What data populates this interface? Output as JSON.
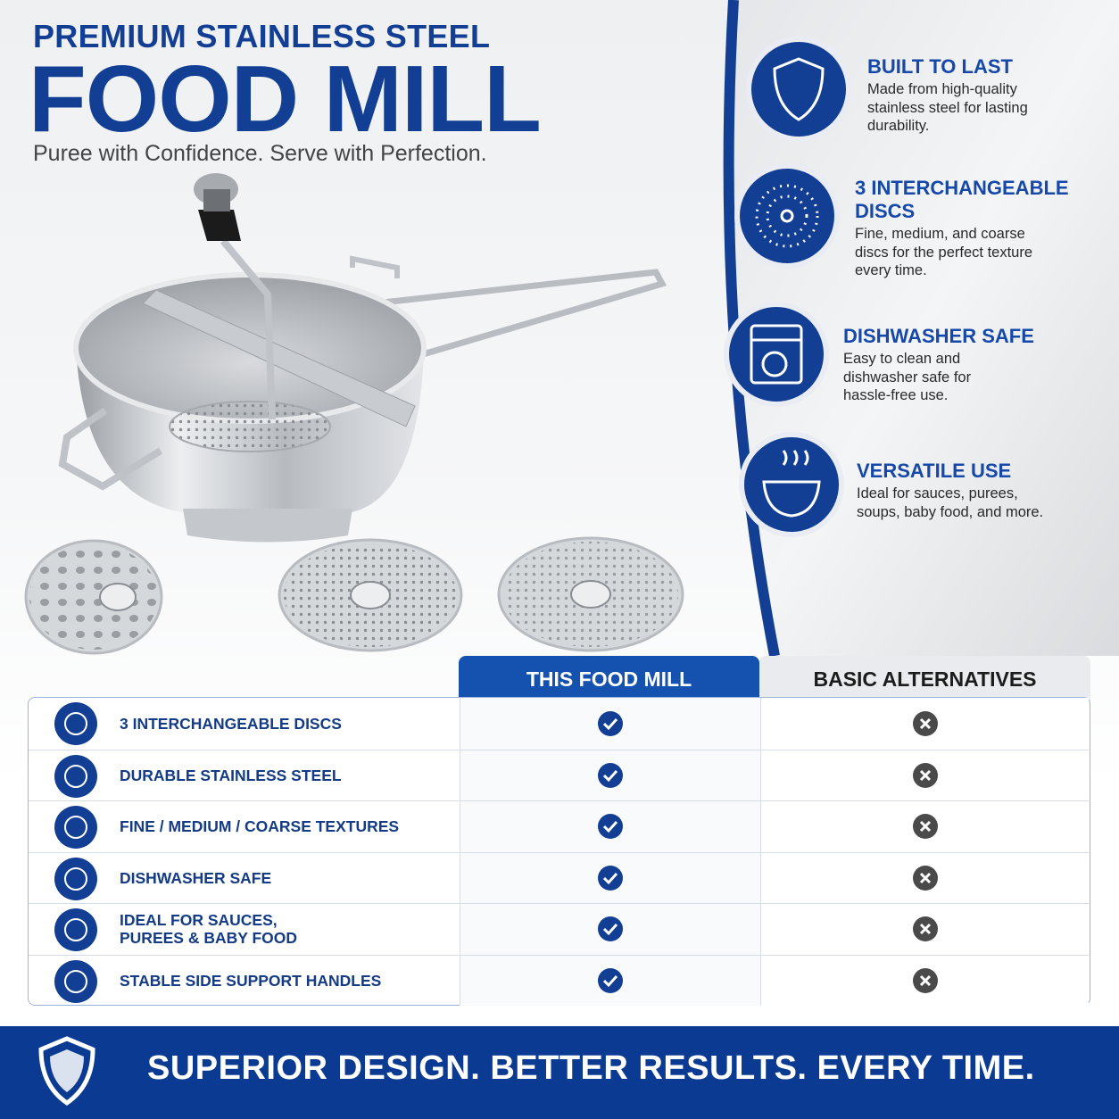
{
  "header": {
    "eyebrow": "PREMIUM STAINLESS STEEL",
    "title": "FOOD MILL",
    "tagline": "Puree with Confidence. Serve with Perfection."
  },
  "features": [
    {
      "title": "BUILT TO LAST",
      "text": "Made from high-quality stainless steel for lasting durability."
    },
    {
      "title": "3 INTERCHANGEABLE DISCS",
      "text": "Fine, medium, and coarse discs for the perfect texture every time."
    },
    {
      "title": "DISHWASHER SAFE",
      "text": "Easy to clean and dishwasher safe for hassle-free use."
    },
    {
      "title": "VERSATILE USE",
      "text": "Ideal for sauces, purees, soups, baby food, and more."
    }
  ],
  "table": {
    "columns": [
      "THIS FOOD MILL",
      "BASIC ALTERNATIVES"
    ],
    "rows": [
      "3 INTERCHANGEABLE DISCS",
      "DURABLE STAINLESS STEEL",
      "FINE / MEDIUM / COARSE TEXTURES",
      "DISHWASHER SAFE",
      "IDEAL FOR SAUCES, PUREES & BABY FOOD",
      "STABLE SIDE SUPPORT HANDLES"
    ]
  },
  "footer": {
    "slogan": "SUPERIOR DESIGN. BETTER RESULTS. EVERY TIME."
  }
}
